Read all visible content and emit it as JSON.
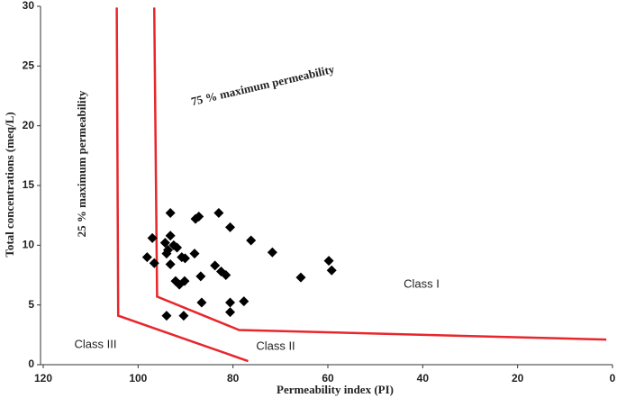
{
  "chart_data": {
    "type": "scatter",
    "xlabel": "Permeability index (PI)",
    "ylabel": "Total concentrations (meq/L)",
    "x": [
      93.2,
      83.0,
      87.2,
      87.9,
      80.6,
      97.0,
      93.2,
      76.2,
      94.3,
      92.5,
      91.8,
      93.7,
      94.0,
      71.7,
      98.1,
      96.6,
      88.1,
      90.8,
      90.1,
      93.2,
      83.8,
      59.8,
      59.2,
      82.5,
      81.5,
      86.8,
      65.7,
      92.1,
      90.2,
      91.3,
      86.6,
      80.6,
      77.7,
      80.6,
      94.0,
      90.4
    ],
    "y": [
      12.7,
      12.7,
      12.4,
      12.2,
      11.5,
      10.6,
      10.8,
      10.4,
      10.2,
      10.0,
      9.8,
      9.6,
      9.3,
      9.4,
      9.0,
      8.5,
      9.3,
      9.0,
      8.9,
      8.4,
      8.3,
      8.7,
      7.9,
      7.8,
      7.5,
      7.4,
      7.3,
      7.0,
      7.0,
      6.7,
      5.2,
      5.2,
      5.3,
      4.4,
      4.1,
      4.1
    ],
    "color": "#000000",
    "boundaries": [
      {
        "color": "#e8262b",
        "x": [
          104.5,
          104.2,
          76.8
        ],
        "y": [
          29.9,
          4.1,
          0.3
        ]
      },
      {
        "color": "#e8262b",
        "x": [
          96.6,
          96.0,
          78.7,
          1.3
        ],
        "y": [
          29.9,
          5.7,
          2.9,
          2.1
        ]
      }
    ],
    "annotations": [
      "75 % maximum permeability",
      "25 % maximum permeability",
      "Class I",
      "Class II",
      "Class III"
    ],
    "xlim": [
      120,
      0
    ],
    "ylim": [
      0,
      30
    ],
    "xticks": [
      120,
      100,
      80,
      60,
      40,
      20,
      0
    ],
    "yticks": [
      0,
      5,
      10,
      15,
      20,
      25,
      30
    ],
    "grid": false
  }
}
